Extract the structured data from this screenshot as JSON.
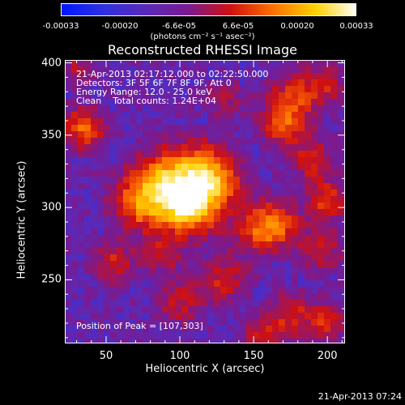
{
  "chart_data": {
    "type": "heatmap",
    "title": "Reconstructed RHESSI Image",
    "xlabel": "Heliocentric X (arcsec)",
    "ylabel": "Heliocentric Y (arcsec)",
    "xlim": [
      22,
      212
    ],
    "ylim": [
      206,
      402
    ],
    "x_ticks": [
      50,
      100,
      150,
      200
    ],
    "y_ticks": [
      250,
      300,
      350,
      400
    ],
    "colorbar": {
      "range": [
        -0.00033,
        0.00033
      ],
      "tick_labels": [
        "-0.00033",
        "-0.00020",
        "-6.6e-05",
        "6.6e-05",
        "0.00020",
        "0.00033"
      ],
      "units": "(photons cm⁻² s⁻¹ asec⁻²)",
      "colors": [
        "#0018ff",
        "#3030e0",
        "#5a2ab8",
        "#7a1a90",
        "#d01010",
        "#ff7000",
        "#ffd000",
        "#ffffff"
      ]
    },
    "annotations": [
      "21-Apr-2013 02:17:12.000 to 02:22:50.000",
      "Detectors: 3F 5F 6F 7F 8F 9F, Att 0",
      "Energy Range: 12.0 - 25.0 keV",
      "Clean    Total counts: 1.24E+04"
    ],
    "peak_label": "Position of Peak = [107,303]",
    "peak_position": [
      107,
      303
    ],
    "blobs": [
      {
        "x": 107,
        "y": 303,
        "amp": 1.35,
        "sigma": 14
      },
      {
        "x": 90,
        "y": 318,
        "amp": 0.85,
        "sigma": 16
      },
      {
        "x": 72,
        "y": 302,
        "amp": 0.7,
        "sigma": 13
      },
      {
        "x": 128,
        "y": 318,
        "amp": 0.55,
        "sigma": 12
      },
      {
        "x": 115,
        "y": 330,
        "amp": 0.55,
        "sigma": 13
      },
      {
        "x": 150,
        "y": 285,
        "amp": 0.45,
        "sigma": 12
      },
      {
        "x": 165,
        "y": 288,
        "amp": 0.75,
        "sigma": 11
      },
      {
        "x": 170,
        "y": 358,
        "amp": 0.65,
        "sigma": 11
      },
      {
        "x": 178,
        "y": 378,
        "amp": 0.55,
        "sigma": 12
      },
      {
        "x": 190,
        "y": 333,
        "amp": 0.55,
        "sigma": 10
      },
      {
        "x": 200,
        "y": 305,
        "amp": 0.6,
        "sigma": 10
      },
      {
        "x": 195,
        "y": 270,
        "amp": 0.5,
        "sigma": 10
      },
      {
        "x": 35,
        "y": 355,
        "amp": 0.75,
        "sigma": 10
      },
      {
        "x": 30,
        "y": 395,
        "amp": 0.4,
        "sigma": 8
      },
      {
        "x": 55,
        "y": 262,
        "amp": 0.5,
        "sigma": 10
      },
      {
        "x": 100,
        "y": 235,
        "amp": 0.45,
        "sigma": 11
      },
      {
        "x": 130,
        "y": 250,
        "amp": 0.5,
        "sigma": 11
      },
      {
        "x": 175,
        "y": 225,
        "amp": 0.55,
        "sigma": 11
      },
      {
        "x": 155,
        "y": 210,
        "amp": 0.45,
        "sigma": 9
      },
      {
        "x": 200,
        "y": 220,
        "amp": 0.5,
        "sigma": 9
      },
      {
        "x": 88,
        "y": 268,
        "amp": 0.45,
        "sigma": 9
      },
      {
        "x": 200,
        "y": 385,
        "amp": 0.45,
        "sigma": 9
      },
      {
        "x": 130,
        "y": 375,
        "amp": 0.35,
        "sigma": 9
      }
    ]
  },
  "timestamp": "21-Apr-2013 07:24"
}
